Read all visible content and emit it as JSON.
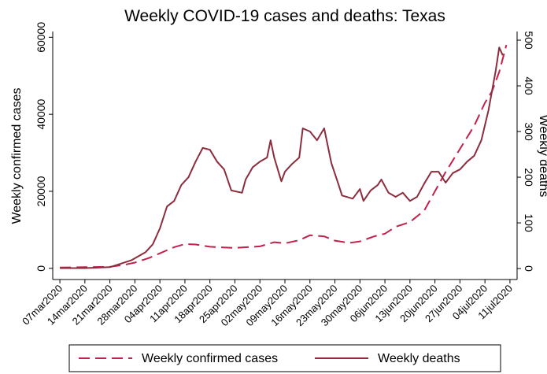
{
  "chart_data": {
    "type": "line",
    "title": "Weekly COVID-19 cases and deaths: Texas",
    "y_label": "Weekly confirmed cases",
    "y2_label": "Weekly deaths",
    "xlim": [
      -2,
      128
    ],
    "xticks": [
      {
        "value": 0,
        "label": "07mar2020"
      },
      {
        "value": 7,
        "label": "14mar2020"
      },
      {
        "value": 14,
        "label": "21mar2020"
      },
      {
        "value": 21,
        "label": "28mar2020"
      },
      {
        "value": 28,
        "label": "04apr2020"
      },
      {
        "value": 35,
        "label": "11apr2020"
      },
      {
        "value": 42,
        "label": "18apr2020"
      },
      {
        "value": 49,
        "label": "25apr2020"
      },
      {
        "value": 56,
        "label": "02may2020"
      },
      {
        "value": 63,
        "label": "09may2020"
      },
      {
        "value": 70,
        "label": "16may2020"
      },
      {
        "value": 77,
        "label": "23may2020"
      },
      {
        "value": 84,
        "label": "30may2020"
      },
      {
        "value": 91,
        "label": "06jun2020"
      },
      {
        "value": 98,
        "label": "13jun2020"
      },
      {
        "value": 105,
        "label": "20jun2020"
      },
      {
        "value": 112,
        "label": "27jun2020"
      },
      {
        "value": 119,
        "label": "04jul2020"
      },
      {
        "value": 126,
        "label": "11jul2020"
      }
    ],
    "ylim": [
      -2900,
      61500
    ],
    "yticks": [
      0,
      20000,
      40000,
      60000
    ],
    "y2lim": [
      -24,
      519
    ],
    "y2ticks": [
      0,
      100,
      200,
      300,
      400,
      500
    ],
    "legend": "bottom",
    "series": [
      {
        "name": "Weekly confirmed cases",
        "color": "#c1214b",
        "dash": true,
        "x": [
          0,
          7,
          14,
          18,
          21,
          25,
          28,
          32,
          35,
          38,
          42,
          49,
          56,
          60,
          63,
          67,
          70,
          74,
          77,
          81,
          84,
          88,
          91,
          94,
          98,
          102,
          105,
          108,
          112,
          116,
          119,
          121,
          123,
          125
        ],
        "values": [
          200,
          300,
          400,
          900,
          1500,
          2700,
          3900,
          5500,
          6300,
          6200,
          5600,
          5300,
          5700,
          6800,
          6500,
          7300,
          8600,
          8300,
          7200,
          6600,
          7000,
          8300,
          9000,
          10800,
          12000,
          15000,
          20000,
          25000,
          31000,
          37000,
          43000,
          46000,
          51000,
          58000
        ]
      },
      {
        "name": "Weekly deaths",
        "color": "#8c2d3d",
        "dash": false,
        "axis": "y2",
        "x": [
          0,
          7,
          14,
          16,
          20,
          24,
          26,
          28,
          30,
          32,
          34,
          36,
          38,
          40,
          42,
          44,
          46,
          48,
          51,
          52,
          54,
          56,
          58,
          59,
          60,
          62,
          63,
          65,
          67,
          68,
          70,
          72,
          74,
          76,
          78,
          79,
          82,
          84,
          85,
          87,
          89,
          90,
          92,
          94,
          96,
          98,
          100,
          102,
          104,
          106,
          108,
          110,
          112,
          114,
          116,
          118,
          120,
          122,
          123,
          124
        ],
        "values": [
          1,
          1,
          3,
          8,
          18,
          36,
          53,
          88,
          136,
          148,
          183,
          200,
          234,
          264,
          260,
          234,
          217,
          171,
          166,
          195,
          222,
          234,
          243,
          281,
          243,
          191,
          212,
          229,
          243,
          307,
          300,
          281,
          307,
          231,
          184,
          160,
          153,
          174,
          148,
          171,
          183,
          195,
          166,
          157,
          166,
          148,
          157,
          186,
          212,
          212,
          188,
          209,
          217,
          234,
          247,
          281,
          347,
          433,
          484,
          467
        ]
      }
    ]
  }
}
